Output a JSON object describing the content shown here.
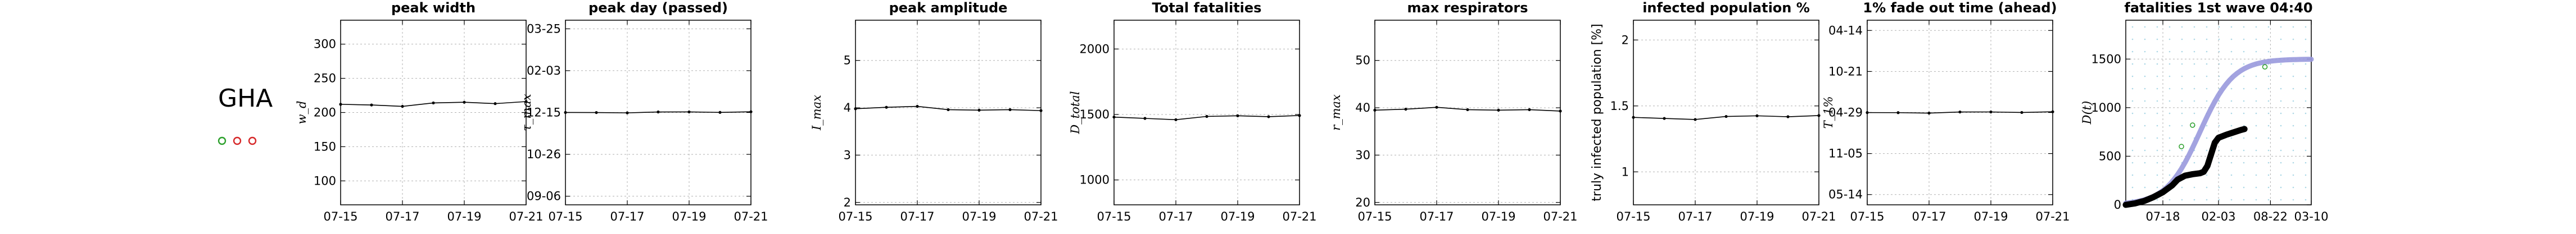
{
  "country": "GHA",
  "indicator_colors": [
    "#2ca02c",
    "#d62728",
    "#d62728"
  ],
  "colors": {
    "line": "#000000",
    "grid": "#b0b0b0",
    "fit": "#9999dd",
    "green": "#2ca02c",
    "dots": "#add8e6"
  },
  "chart_data": [
    {
      "type": "line",
      "title": "peak width",
      "ylabel": "w_d",
      "x": [
        "07-15",
        "07-16",
        "07-17",
        "07-18",
        "07-19",
        "07-20",
        "07-21"
      ],
      "xticks": [
        "07-15",
        "07-17",
        "07-19",
        "07-21"
      ],
      "values": [
        212,
        211,
        209,
        214,
        215,
        213,
        216
      ],
      "ylim": [
        65,
        335
      ],
      "yticks": [
        100,
        150,
        200,
        250,
        300
      ],
      "ytick_labels": [
        "100",
        "150",
        "200",
        "250",
        "300"
      ],
      "grid": true
    },
    {
      "type": "line",
      "title": "peak day (passed)",
      "ylabel": "τ_max",
      "x": [
        "07-15",
        "07-16",
        "07-17",
        "07-18",
        "07-19",
        "07-20",
        "07-21"
      ],
      "xticks": [
        "07-15",
        "07-17",
        "07-19",
        "07-21"
      ],
      "values": [
        0.03,
        -0.04,
        -0.28,
        0.44,
        0.47,
        0.1,
        0.6
      ],
      "ylim": [
        -75,
        75
      ],
      "yticks": [
        -68,
        -34,
        0,
        34,
        68
      ],
      "ytick_labels": [
        "09-06",
        "10-26",
        "12-15",
        "02-03",
        "03-25"
      ],
      "grid": true
    },
    {
      "type": "line",
      "title": "peak amplitude",
      "ylabel": "I_max",
      "x": [
        "07-15",
        "07-16",
        "07-17",
        "07-18",
        "07-19",
        "07-20",
        "07-21"
      ],
      "xticks": [
        "07-15",
        "07-17",
        "07-19",
        "07-21"
      ],
      "values": [
        3.98,
        4.01,
        4.03,
        3.96,
        3.95,
        3.96,
        3.94
      ],
      "ylim": [
        1.95,
        5.85
      ],
      "yticks": [
        2,
        3,
        4,
        5
      ],
      "ytick_labels": [
        "2",
        "3",
        "4",
        "5"
      ],
      "grid": true
    },
    {
      "type": "line",
      "title": "Total fatalities",
      "ylabel": "D_total",
      "x": [
        "07-15",
        "07-16",
        "07-17",
        "07-18",
        "07-19",
        "07-20",
        "07-21"
      ],
      "xticks": [
        "07-15",
        "07-17",
        "07-19",
        "07-21"
      ],
      "values": [
        1480,
        1470,
        1460,
        1485,
        1490,
        1483,
        1492
      ],
      "ylim": [
        810,
        2220
      ],
      "yticks": [
        1000,
        1500,
        2000
      ],
      "ytick_labels": [
        "1000",
        "1500",
        "2000"
      ],
      "grid": true
    },
    {
      "type": "line",
      "title": "max respirators",
      "ylabel": "r_max",
      "x": [
        "07-15",
        "07-16",
        "07-17",
        "07-18",
        "07-19",
        "07-20",
        "07-21"
      ],
      "xticks": [
        "07-15",
        "07-17",
        "07-19",
        "07-21"
      ],
      "values": [
        39.5,
        39.7,
        40.1,
        39.6,
        39.5,
        39.6,
        39.3
      ],
      "ylim": [
        19.5,
        58.5
      ],
      "yticks": [
        20,
        30,
        40,
        50
      ],
      "ytick_labels": [
        "20",
        "30",
        "40",
        "50"
      ],
      "grid": true
    },
    {
      "type": "line",
      "title": "infected population %",
      "ylabel": "truly infected population [%]",
      "x": [
        "07-15",
        "07-16",
        "07-17",
        "07-18",
        "07-19",
        "07-20",
        "07-21"
      ],
      "xticks": [
        "07-15",
        "07-17",
        "07-19",
        "07-21"
      ],
      "values": [
        1.413,
        1.405,
        1.397,
        1.42,
        1.425,
        1.418,
        1.427
      ],
      "ylim": [
        0.75,
        2.15
      ],
      "yticks": [
        1.0,
        1.5,
        2.0
      ],
      "ytick_labels": [
        "1",
        "1.5",
        "2"
      ],
      "grid": true
    },
    {
      "type": "line",
      "title": "1% fade out time (ahead)",
      "ylabel": "T_1%",
      "x": [
        "07-15",
        "07-16",
        "07-17",
        "07-18",
        "07-19",
        "07-20",
        "07-21"
      ],
      "xticks": [
        "07-15",
        "07-17",
        "07-19",
        "07-21"
      ],
      "values": [
        -0.05,
        -0.1,
        -0.42,
        0.35,
        0.38,
        0.02,
        0.5
      ],
      "ylim": [
        -63,
        63
      ],
      "yticks": [
        -56,
        -28,
        0,
        28,
        56
      ],
      "ytick_labels": [
        "05-14",
        "11-05",
        "04-29",
        "10-21",
        "04-14"
      ],
      "grid": true
    },
    {
      "type": "line",
      "title": "fatalities 1st wave 04:40",
      "ylabel": "D(t)",
      "x_ticks": [
        "07-18",
        "02-03",
        "08-22",
        "03-10"
      ],
      "xlim": [
        0,
        100
      ],
      "ylim": [
        0,
        1900
      ],
      "yticks": [
        0,
        500,
        1000,
        1500
      ],
      "ytick_labels": [
        "0",
        "500",
        "1000",
        "1500"
      ],
      "grid": true
    }
  ]
}
